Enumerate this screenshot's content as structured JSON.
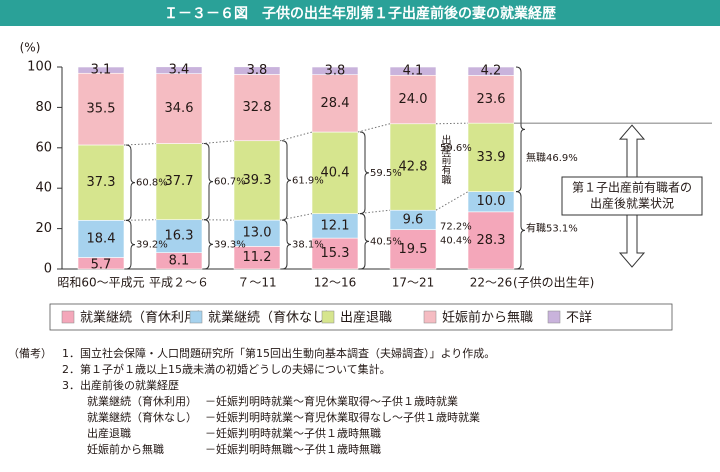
{
  "chart_data": {
    "type": "stacked-bar",
    "title": "Ｉ－３－６図　子供の出生年別第１子出産前後の妻の就業経歴",
    "y_label": "(%)",
    "x_label": "(子供の出生年)",
    "categories": [
      "昭和60～平成元",
      "平成２～６",
      "７～11",
      "12～16",
      "17～21",
      "22～26"
    ],
    "ylim": [
      0,
      100
    ],
    "yticks": [
      0,
      20,
      40,
      60,
      80,
      100
    ],
    "series": [
      {
        "name": "就業継続（育休利用）",
        "color": "#f4a7ba",
        "values": [
          5.7,
          8.1,
          11.2,
          15.3,
          19.5,
          28.3
        ],
        "value_labels": [
          "5.7",
          "8.1",
          "11.2",
          "15.3",
          "19.5",
          "28.3"
        ]
      },
      {
        "name": "就業継続（育休なし）",
        "color": "#a6d2ee",
        "values": [
          18.4,
          16.3,
          13.0,
          12.1,
          9.6,
          10.0
        ],
        "value_labels": [
          "18.4",
          "16.3",
          "13.0",
          "12.1",
          "9.6",
          "10.0"
        ]
      },
      {
        "name": "出産退職",
        "color": "#d6e58e",
        "values": [
          37.3,
          37.7,
          39.3,
          40.4,
          42.8,
          33.9
        ],
        "value_labels": [
          "37.3",
          "37.7",
          "39.3",
          "40.4",
          "42.8",
          "33.9"
        ]
      },
      {
        "name": "妊娠前から無職",
        "color": "#f5bcc2",
        "values": [
          35.5,
          34.6,
          32.8,
          28.4,
          24.0,
          23.6
        ],
        "value_labels": [
          "35.5",
          "34.6",
          "32.8",
          "28.4",
          "24.0",
          "23.6"
        ]
      },
      {
        "name": "不詳",
        "color": "#c9b3dc",
        "values": [
          3.1,
          3.4,
          3.8,
          3.8,
          4.1,
          4.2
        ],
        "value_labels": [
          "3.1",
          "3.4",
          "3.8",
          "3.8",
          "4.1",
          "4.2"
        ]
      }
    ],
    "upper_shares": [
      "60.8%",
      "60.7%",
      "61.9%",
      "59.5%",
      "59.6%"
    ],
    "lower_shares": [
      "39.2%",
      "39.3%",
      "38.1%",
      "40.5%",
      "40.4%"
    ],
    "employed_share": "72.2%",
    "employed_note": "出産前有職",
    "last_upper": "無職46.9%",
    "last_lower": "有職53.1%",
    "callout": [
      "第１子出産前有職者の",
      "出産後就業状況"
    ]
  },
  "notes": {
    "head": "（備考）",
    "items": [
      "1．国立社会保障・人口問題研究所「第15回出生動向基本調査（夫婦調査）」より作成。",
      "2．第１子が１歳以上15歳未満の初婚どうしの夫婦について集計。",
      "3．出産前後の就業経歴"
    ],
    "definitions": [
      [
        "就業継続（育休利用）",
        "－妊娠判明時就業～育児休業取得～子供１歳時就業"
      ],
      [
        "就業継続（育休なし）",
        "－妊娠判明時就業～育児休業取得なし～子供１歳時就業"
      ],
      [
        "出産退職",
        "－妊娠判明時就業～子供１歳時無職"
      ],
      [
        "妊娠前から無職",
        "－妊娠判明時無職～子供１歳時無職"
      ]
    ]
  }
}
